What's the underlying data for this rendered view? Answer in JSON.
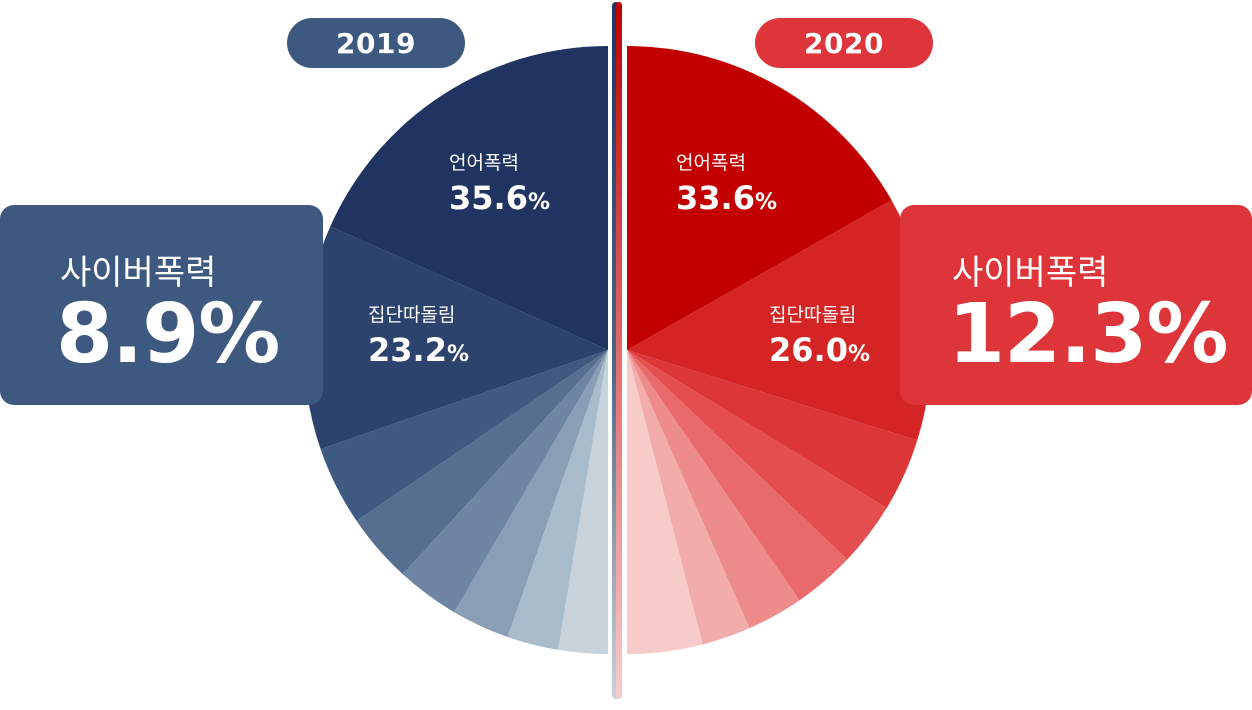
{
  "chart_data": [
    {
      "type": "pie",
      "year": "2019",
      "headline": {
        "label": "사이버폭력",
        "value": "8.9%"
      },
      "slices": [
        {
          "label": "언어폭력",
          "value": 35.6,
          "color": "#1f3461"
        },
        {
          "label": "집단따돌림",
          "value": 23.2,
          "color": "#2c436d"
        },
        {
          "label": "",
          "value": 8.2,
          "color": "#3e5a81"
        },
        {
          "label": "",
          "value": 7.2,
          "color": "#566f91"
        },
        {
          "label": "",
          "value": 6.5,
          "color": "#6e85a3"
        },
        {
          "label": "",
          "value": 6.0,
          "color": "#8a9eb5"
        },
        {
          "label": "",
          "value": 5.3,
          "color": "#a9bccb"
        },
        {
          "label": "",
          "value": 5.1,
          "color": "#c7d2db"
        }
      ]
    },
    {
      "type": "pie",
      "year": "2020",
      "headline": {
        "label": "사이버폭력",
        "value": "12.3%"
      },
      "slices": [
        {
          "label": "언어폭력",
          "value": 33.6,
          "color": "#c20000"
        },
        {
          "label": "집단따돌림",
          "value": 26.0,
          "color": "#d42424"
        },
        {
          "label": "",
          "value": 7.8,
          "color": "#dd3636"
        },
        {
          "label": "",
          "value": 6.8,
          "color": "#e44e4e"
        },
        {
          "label": "",
          "value": 6.6,
          "color": "#e96a6a"
        },
        {
          "label": "",
          "value": 6.0,
          "color": "#ee8c8c"
        },
        {
          "label": "",
          "value": 5.2,
          "color": "#f3acac"
        },
        {
          "label": "",
          "value": 8.0,
          "color": "#f8cbcb"
        }
      ]
    }
  ],
  "theme": {
    "left_accent": "#3d5980",
    "right_accent": "#dd3539",
    "divider_top_left": "#c00000",
    "divider_bottom": "#f3c9cf"
  }
}
